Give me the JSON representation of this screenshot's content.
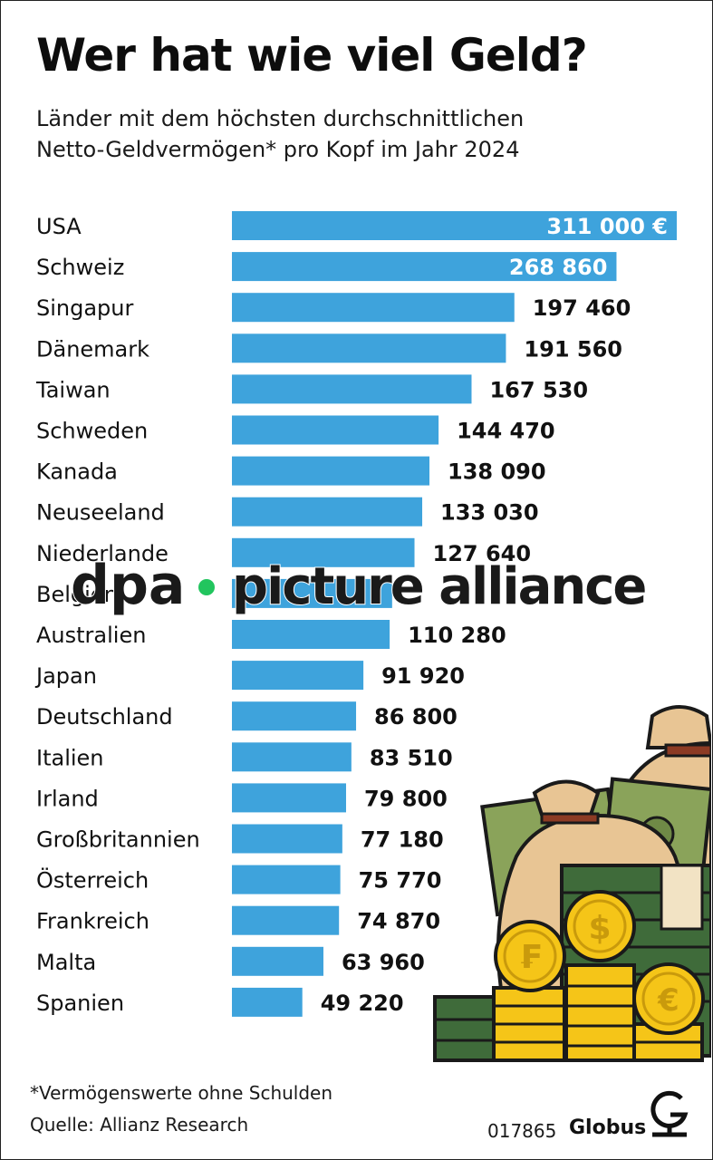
{
  "header": {
    "title": "Wer hat wie viel Geld?",
    "subtitle_line1": "Länder mit dem höchsten durchschnittlichen",
    "subtitle_line2": "Netto-Geldvermögen* pro Kopf im Jahr 2024"
  },
  "colors": {
    "bar": "#3ea3dc",
    "value_inside": "#ffffff",
    "value_outside": "#111111",
    "watermark_dot": "#22c55e"
  },
  "chart_data": {
    "type": "bar",
    "orientation": "horizontal",
    "title": "Wer hat wie viel Geld?",
    "unit": "€",
    "categories": [
      "USA",
      "Schweiz",
      "Singapur",
      "Dänemark",
      "Taiwan",
      "Schweden",
      "Kanada",
      "Neuseeland",
      "Niederlande",
      "Belgien",
      "Australien",
      "Japan",
      "Deutschland",
      "Italien",
      "Irland",
      "Großbritannien",
      "Österreich",
      "Frankreich",
      "Malta",
      "Spanien"
    ],
    "values": [
      311000,
      268860,
      197460,
      191560,
      167530,
      144470,
      138090,
      133030,
      127640,
      112000,
      110280,
      91920,
      86800,
      83510,
      79800,
      77180,
      75770,
      74870,
      63960,
      49220
    ],
    "value_labels": [
      "311 000  €",
      "268 860",
      "197 460",
      "191 560",
      "167 530",
      "144 470",
      "138 090",
      "133 030",
      "127 640",
      "",
      "110 280",
      "91 920",
      "86 800",
      "83 510",
      "79 800",
      "77 180",
      "75 770",
      "74 870",
      "63 960",
      "49 220"
    ],
    "xlim": [
      0,
      311000
    ]
  },
  "footer": {
    "footnote": "*Vermögenswerte ohne Schulden",
    "source": "Quelle: Allianz Research",
    "code": "017865",
    "brand": "Globus"
  },
  "watermark": {
    "left": "dpa",
    "right": "picture alliance"
  },
  "decoration_icons": [
    "money-bag-icon",
    "banknote-stack-icon",
    "franc-coin-icon",
    "dollar-coin-icon",
    "euro-coin-icon"
  ]
}
